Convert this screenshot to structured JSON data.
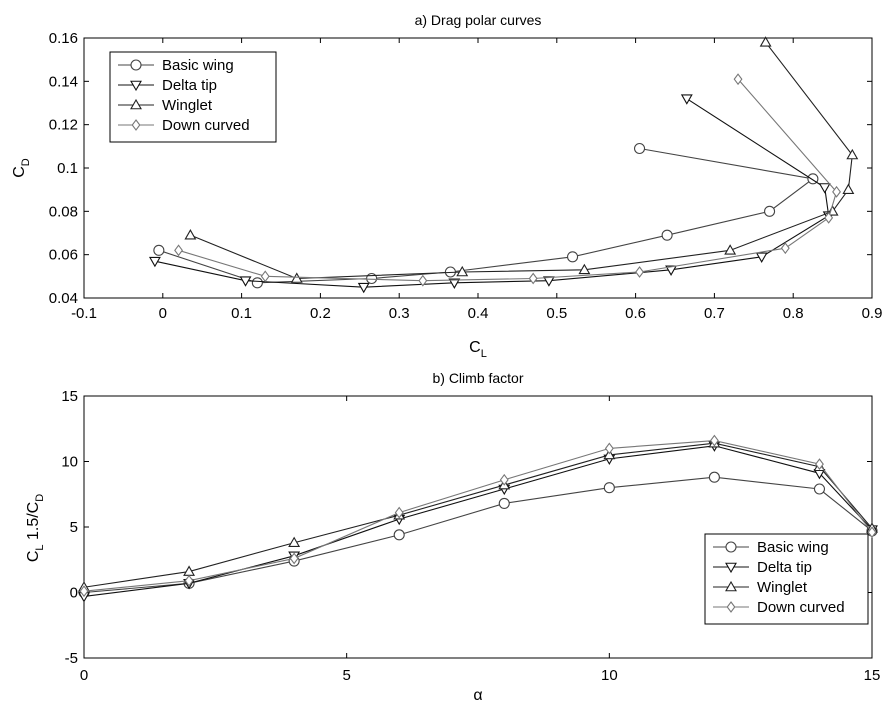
{
  "chart_data": [
    {
      "type": "line",
      "title": "a) Drag polar curves",
      "xlabel": "C",
      "xlabel_sub": "L",
      "ylabel": "C",
      "ylabel_sub": "D",
      "xlim": [
        -0.1,
        0.9
      ],
      "ylim": [
        0.04,
        0.16
      ],
      "xticks": [
        -0.1,
        0,
        0.1,
        0.2,
        0.3,
        0.4,
        0.5,
        0.6,
        0.7,
        0.8,
        0.9
      ],
      "xtick_labels": [
        "-0.1",
        "0",
        "0.1",
        "0.2",
        "0.3",
        "0.4",
        "0.5",
        "0.6",
        "0.7",
        "0.8",
        "0.9"
      ],
      "yticks": [
        0.04,
        0.06,
        0.08,
        0.1,
        0.12,
        0.14,
        0.16
      ],
      "ytick_labels": [
        "0.04",
        "0.06",
        "0.08",
        "0.1",
        "0.12",
        "0.14",
        "0.16"
      ],
      "grid": false,
      "legend_position": "top-left",
      "series": [
        {
          "name": "Basic wing",
          "marker": "circle",
          "color": "#444444",
          "x": [
            -0.005,
            0.12,
            0.265,
            0.365,
            0.52,
            0.64,
            0.77,
            0.825,
            0.605
          ],
          "y": [
            0.062,
            0.047,
            0.049,
            0.052,
            0.059,
            0.069,
            0.08,
            0.095,
            0.109
          ]
        },
        {
          "name": "Delta tip",
          "marker": "triangle-down",
          "color": "#111111",
          "x": [
            -0.01,
            0.105,
            0.255,
            0.37,
            0.49,
            0.645,
            0.76,
            0.845,
            0.84,
            0.665
          ],
          "y": [
            0.057,
            0.048,
            0.045,
            0.047,
            0.048,
            0.053,
            0.059,
            0.078,
            0.091,
            0.132
          ]
        },
        {
          "name": "Winglet",
          "marker": "triangle-up",
          "color": "#222222",
          "x": [
            0.035,
            0.17,
            0.38,
            0.535,
            0.72,
            0.85,
            0.87,
            0.875,
            0.765
          ],
          "y": [
            0.069,
            0.049,
            0.052,
            0.053,
            0.062,
            0.08,
            0.09,
            0.106,
            0.158
          ]
        },
        {
          "name": "Down curved",
          "marker": "diamond",
          "color": "#777777",
          "x": [
            0.02,
            0.13,
            0.33,
            0.47,
            0.605,
            0.79,
            0.845,
            0.855,
            0.73
          ],
          "y": [
            0.062,
            0.05,
            0.048,
            0.049,
            0.052,
            0.063,
            0.077,
            0.089,
            0.141
          ]
        }
      ]
    },
    {
      "type": "line",
      "title": "b) Climb factor",
      "xlabel": "α",
      "ylabel_parts": {
        "pre": "C",
        "sub1": "L",
        "mid": "1.5/C",
        "sub2": "D"
      },
      "xlim": [
        0,
        15
      ],
      "ylim": [
        -5,
        15
      ],
      "xticks": [
        0,
        5,
        10,
        15
      ],
      "xtick_labels": [
        "0",
        "5",
        "10",
        "15"
      ],
      "yticks": [
        -5,
        0,
        5,
        10,
        15
      ],
      "ytick_labels": [
        "-5",
        "0",
        "5",
        "10",
        "15"
      ],
      "grid": false,
      "legend_position": "bottom-right",
      "series": [
        {
          "name": "Basic wing",
          "marker": "circle",
          "color": "#444444",
          "x": [
            0,
            2,
            4,
            6,
            8,
            10,
            12,
            14,
            15
          ],
          "y": [
            0.0,
            0.7,
            2.4,
            4.4,
            6.8,
            8.0,
            8.8,
            7.9,
            4.7
          ]
        },
        {
          "name": "Delta tip",
          "marker": "triangle-down",
          "color": "#111111",
          "x": [
            0,
            2,
            4,
            6,
            8,
            10,
            12,
            14,
            15
          ],
          "y": [
            -0.3,
            0.7,
            2.8,
            5.6,
            7.9,
            10.2,
            11.2,
            9.1,
            4.8
          ]
        },
        {
          "name": "Winglet",
          "marker": "triangle-up",
          "color": "#222222",
          "x": [
            0,
            2,
            4,
            6,
            8,
            10,
            12,
            14,
            15
          ],
          "y": [
            0.4,
            1.6,
            3.8,
            5.9,
            8.2,
            10.5,
            11.4,
            9.6,
            4.9
          ]
        },
        {
          "name": "Down curved",
          "marker": "diamond",
          "color": "#777777",
          "x": [
            0,
            2,
            4,
            6,
            8,
            10,
            12,
            14,
            15
          ],
          "y": [
            0.1,
            0.9,
            2.6,
            6.1,
            8.6,
            11.0,
            11.6,
            9.8,
            4.6
          ]
        }
      ]
    }
  ]
}
